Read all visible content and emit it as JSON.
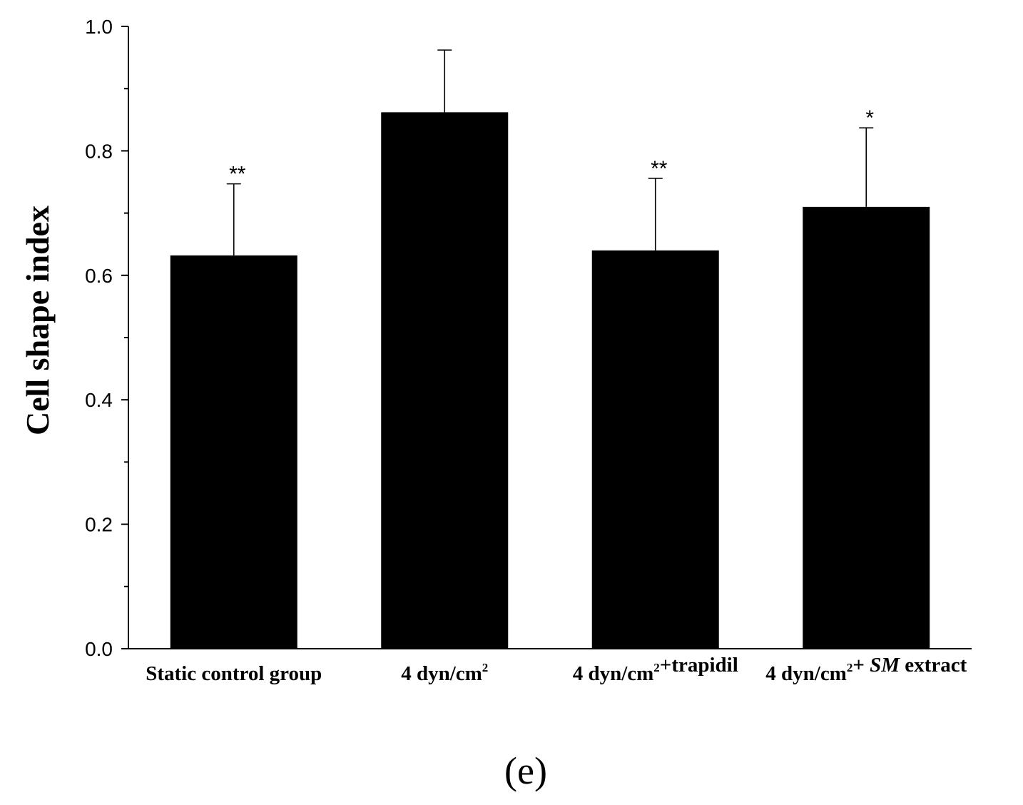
{
  "chart_data": {
    "type": "bar",
    "ylabel": "Cell shape index",
    "ylim": [
      0.0,
      1.0
    ],
    "yticks": [
      "0.0",
      "0.2",
      "0.4",
      "0.6",
      "0.8",
      "1.0"
    ],
    "yticks_values": [
      0.0,
      0.2,
      0.4,
      0.6,
      0.8,
      1.0
    ],
    "categories": [
      {
        "parts": [
          {
            "t": "Static control group"
          }
        ]
      },
      {
        "parts": [
          {
            "t": "4 dyn/cm"
          },
          {
            "t": "2",
            "sup": true
          }
        ]
      },
      {
        "parts": [
          {
            "t": "4 dyn/cm"
          },
          {
            "t": "2",
            "sup": true
          },
          {
            "t": "+trapidil"
          }
        ]
      },
      {
        "parts": [
          {
            "t": "4 dyn/cm"
          },
          {
            "t": "2",
            "sup": true
          },
          {
            "t": "+ "
          },
          {
            "t": "SM",
            "italic": true
          },
          {
            "t": " extract"
          }
        ]
      }
    ],
    "values": [
      0.632,
      0.862,
      0.64,
      0.71
    ],
    "errors": [
      0.115,
      0.1,
      0.116,
      0.127
    ],
    "annotations": [
      "**",
      "",
      "**",
      "*"
    ],
    "bar_color": "#000000",
    "grid": false,
    "panel_label": "(e)"
  }
}
